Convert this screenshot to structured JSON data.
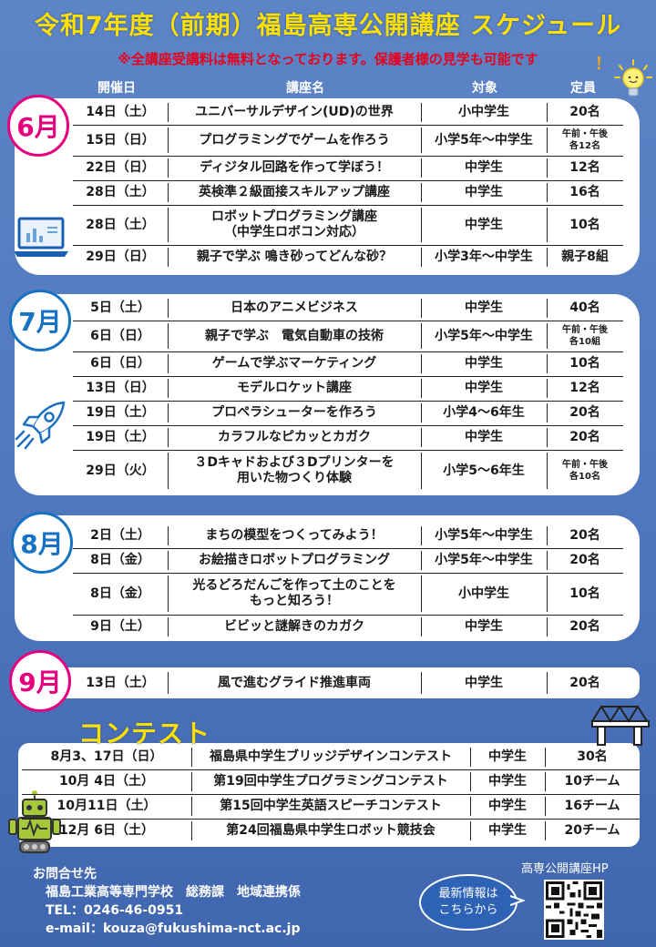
{
  "title": "令和7年度（前期）福島高専公開講座 スケジュール",
  "notice": "※全講座受講料は無料となっております。保護者様の見学も可能です",
  "notice_mark": "！",
  "header": {
    "date": "開催日",
    "course": "講座名",
    "target": "対象",
    "capacity": "定員"
  },
  "june": {
    "label": "6月",
    "rows": [
      {
        "date": "14日（土）",
        "course": "ユニバーサルデザイン(UD)の世界",
        "target": "小中学生",
        "cap": "20名"
      },
      {
        "date": "15日（日）",
        "course": "プログラミングでゲームを作ろう",
        "target": "小学5年～中学生",
        "cap": "午前・午後\n各12名"
      },
      {
        "date": "22日（日）",
        "course": "ディジタル回路を作って学ぼう！",
        "target": "中学生",
        "cap": "12名"
      },
      {
        "date": "28日（土）",
        "course": "英検準２級面接スキルアップ講座",
        "target": "中学生",
        "cap": "16名"
      },
      {
        "date": "28日（土）",
        "course": "ロボットプログラミング講座\n（中学生ロボコン対応）",
        "target": "中学生",
        "cap": "10名"
      },
      {
        "date": "29日（日）",
        "course": "親子で学ぶ 鳴き砂ってどんな砂？",
        "target": "小学3年～中学生",
        "cap": "親子8組"
      }
    ]
  },
  "july": {
    "label": "7月",
    "rows": [
      {
        "date": "5日（土）",
        "course": "日本のアニメビジネス",
        "target": "中学生",
        "cap": "40名"
      },
      {
        "date": "6日（日）",
        "course": "親子で学ぶ　電気自動車の技術",
        "target": "小学5年～中学生",
        "cap": "午前・午後\n各10組"
      },
      {
        "date": "6日（日）",
        "course": "ゲームで学ぶマーケティング",
        "target": "中学生",
        "cap": "10名"
      },
      {
        "date": "13日（日）",
        "course": "モデルロケット講座",
        "target": "中学生",
        "cap": "12名"
      },
      {
        "date": "19日（土）",
        "course": "プロペラシューターを作ろう",
        "target": "小学4～6年生",
        "cap": "20名"
      },
      {
        "date": "19日（土）",
        "course": "カラフルなピカッとカガク",
        "target": "中学生",
        "cap": "20名"
      },
      {
        "date": "29日（火）",
        "course": "３Dキャドおよび３Dプリンターを\n用いた物つくり体験",
        "target": "小学5～6年生",
        "cap": "午前・午後\n各10名"
      }
    ]
  },
  "august": {
    "label": "8月",
    "rows": [
      {
        "date": "2日（土）",
        "course": "まちの模型をつくってみよう！",
        "target": "小学5年～中学生",
        "cap": "20名"
      },
      {
        "date": "8日（金）",
        "course": "お絵描きロボットプログラミング",
        "target": "小学5年～中学生",
        "cap": "20名"
      },
      {
        "date": "8日（金）",
        "course": "光るどろだんごを作って土のことを\nもっと知ろう！",
        "target": "小中学生",
        "cap": "10名"
      },
      {
        "date": "9日（土）",
        "course": "ビビッと謎解きのカガク",
        "target": "中学生",
        "cap": "20名"
      }
    ]
  },
  "september": {
    "label": "9月",
    "rows": [
      {
        "date": "13日（土）",
        "course": "風で進むグライド推進車両",
        "target": "中学生",
        "cap": "20名"
      }
    ]
  },
  "contest": {
    "title": "コンテスト",
    "rows": [
      {
        "date": "8月3、17日（日）",
        "name": "福島県中学生ブリッジデザインコンテスト",
        "target": "中学生",
        "cap": "30名"
      },
      {
        "date": "10月  4日（土）",
        "name": "第19回中学生プログラミングコンテスト",
        "target": "中学生",
        "cap": "10チーム"
      },
      {
        "date": "10月11日（土）",
        "name": "第15回中学生英語スピーチコンテスト",
        "target": "中学生",
        "cap": "16チーム"
      },
      {
        "date": "12月  6日（土）",
        "name": "第24回福島県中学生ロボット競技会",
        "target": "中学生",
        "cap": "20チーム"
      }
    ]
  },
  "contact": {
    "heading": "お問合せ先",
    "org": "福島工業高等専門学校　総務課　地域連携係",
    "tel": "TEL：0246-46-0951",
    "email": "e-mail：kouza@fukushima-nct.ac.jp"
  },
  "hp": {
    "label": "高専公開講座HP",
    "bubble_line1": "最新情報は",
    "bubble_line2": "こちらから"
  }
}
